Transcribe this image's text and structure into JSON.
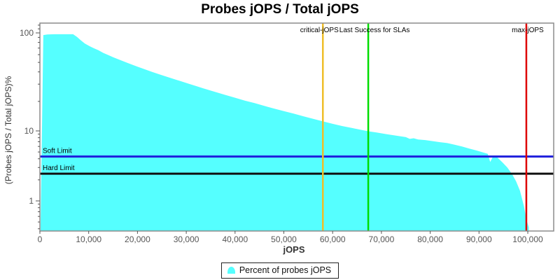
{
  "chart_data": {
    "type": "area",
    "title": "Probes jOPS / Total jOPS",
    "xlabel": "jOPS",
    "ylabel": "(Probes jOPS / Total jOPS)%",
    "x_axis": {
      "min": 0,
      "max": 105500,
      "ticks": [
        {
          "v": 0,
          "label": "0"
        },
        {
          "v": 10000,
          "label": "10,000"
        },
        {
          "v": 20000,
          "label": "20,000"
        },
        {
          "v": 30000,
          "label": "30,000"
        },
        {
          "v": 40000,
          "label": "40,000"
        },
        {
          "v": 50000,
          "label": "50,000"
        },
        {
          "v": 60000,
          "label": "60,000"
        },
        {
          "v": 70000,
          "label": "70,000"
        },
        {
          "v": 80000,
          "label": "80,000"
        },
        {
          "v": 90000,
          "label": "90,000"
        },
        {
          "v": 100000,
          "label": "100,000"
        }
      ]
    },
    "y_axis": {
      "scale": "log",
      "min": 0.4,
      "max": 125,
      "major_ticks": [
        {
          "v": 100,
          "label": "100"
        },
        {
          "v": 10,
          "label": "10"
        },
        {
          "v": 1,
          "label": "1"
        }
      ],
      "minor_ticks": [
        120,
        110,
        90,
        80,
        70,
        60,
        50,
        40,
        30,
        20,
        9,
        8,
        7,
        6,
        5,
        4,
        3,
        2,
        0.9,
        0.8,
        0.7,
        0.6,
        0.5,
        0.4
      ]
    },
    "grid": false,
    "background": "#ffffff",
    "plot_border_color": "#8c8c8c",
    "series": [
      {
        "name": "Percent of probes jOPS",
        "color": "#55FFFF",
        "points": [
          [
            150,
            0.45
          ],
          [
            700,
            95
          ],
          [
            1500,
            96.5
          ],
          [
            3000,
            97
          ],
          [
            6800,
            97
          ],
          [
            7600,
            91
          ],
          [
            8400,
            84
          ],
          [
            9200,
            78
          ],
          [
            10000,
            74
          ],
          [
            11000,
            70
          ],
          [
            12000,
            66.5
          ],
          [
            13000,
            62.5
          ],
          [
            14000,
            59.5
          ],
          [
            15000,
            56.5
          ],
          [
            16000,
            54
          ],
          [
            17000,
            51.5
          ],
          [
            18000,
            49.3
          ],
          [
            19000,
            47.2
          ],
          [
            20000,
            45.2
          ],
          [
            21500,
            42.5
          ],
          [
            23000,
            40
          ],
          [
            24500,
            37.8
          ],
          [
            26000,
            35.7
          ],
          [
            27500,
            33.8
          ],
          [
            29000,
            32
          ],
          [
            30500,
            30.3
          ],
          [
            32000,
            28.7
          ],
          [
            33500,
            27.2
          ],
          [
            35000,
            25.8
          ],
          [
            36500,
            24.5
          ],
          [
            38000,
            23.3
          ],
          [
            40000,
            21.8
          ],
          [
            42000,
            20.4
          ],
          [
            44000,
            19.2
          ],
          [
            46000,
            18
          ],
          [
            48000,
            16.9
          ],
          [
            50000,
            15.9
          ],
          [
            52000,
            15
          ],
          [
            54000,
            14.1
          ],
          [
            56000,
            13.3
          ],
          [
            58000,
            12.5
          ],
          [
            60000,
            11.8
          ],
          [
            62000,
            11.2
          ],
          [
            64000,
            10.7
          ],
          [
            66000,
            10.2
          ],
          [
            67500,
            9.85
          ],
          [
            69000,
            9.5
          ],
          [
            71000,
            9.0
          ],
          [
            73000,
            8.55
          ],
          [
            75000,
            8.15
          ],
          [
            75800,
            7.7
          ],
          [
            76600,
            7.85
          ],
          [
            77500,
            7.55
          ],
          [
            79000,
            7.4
          ],
          [
            80500,
            7.15
          ],
          [
            82000,
            6.9
          ],
          [
            83500,
            6.7
          ],
          [
            85000,
            6.35
          ],
          [
            86500,
            6.0
          ],
          [
            88000,
            5.6
          ],
          [
            89500,
            5.25
          ],
          [
            90700,
            4.95
          ],
          [
            91800,
            4.7
          ],
          [
            92300,
            3.6
          ],
          [
            92900,
            4.35
          ],
          [
            93800,
            4.15
          ],
          [
            94800,
            3.55
          ],
          [
            95800,
            3.0
          ],
          [
            96800,
            2.4
          ],
          [
            97600,
            1.9
          ],
          [
            98400,
            1.4
          ],
          [
            99200,
            0.85
          ],
          [
            99700,
            0.55
          ],
          [
            100200,
            0.42
          ]
        ]
      }
    ],
    "v_markers": [
      {
        "label": "critical-jOPS",
        "x": 58000,
        "color": "#EFBE28",
        "label_dx": -5
      },
      {
        "label": "Last Success for SLAs",
        "x": 67300,
        "color": "#00DD00",
        "label_dx": 9
      },
      {
        "label": "max-jOPS",
        "x": 99700,
        "color": "#DD0000",
        "label_dx": 2
      }
    ],
    "h_markers": [
      {
        "label": "Soft Limit",
        "y": 4.3,
        "color": "#1E1EDC"
      },
      {
        "label": "Hard Limit",
        "y": 2.45,
        "color": "#111111"
      }
    ],
    "legend": {
      "position": "bottom",
      "items": [
        {
          "label": "Percent of probes jOPS",
          "color": "#55FFFF"
        }
      ]
    }
  }
}
